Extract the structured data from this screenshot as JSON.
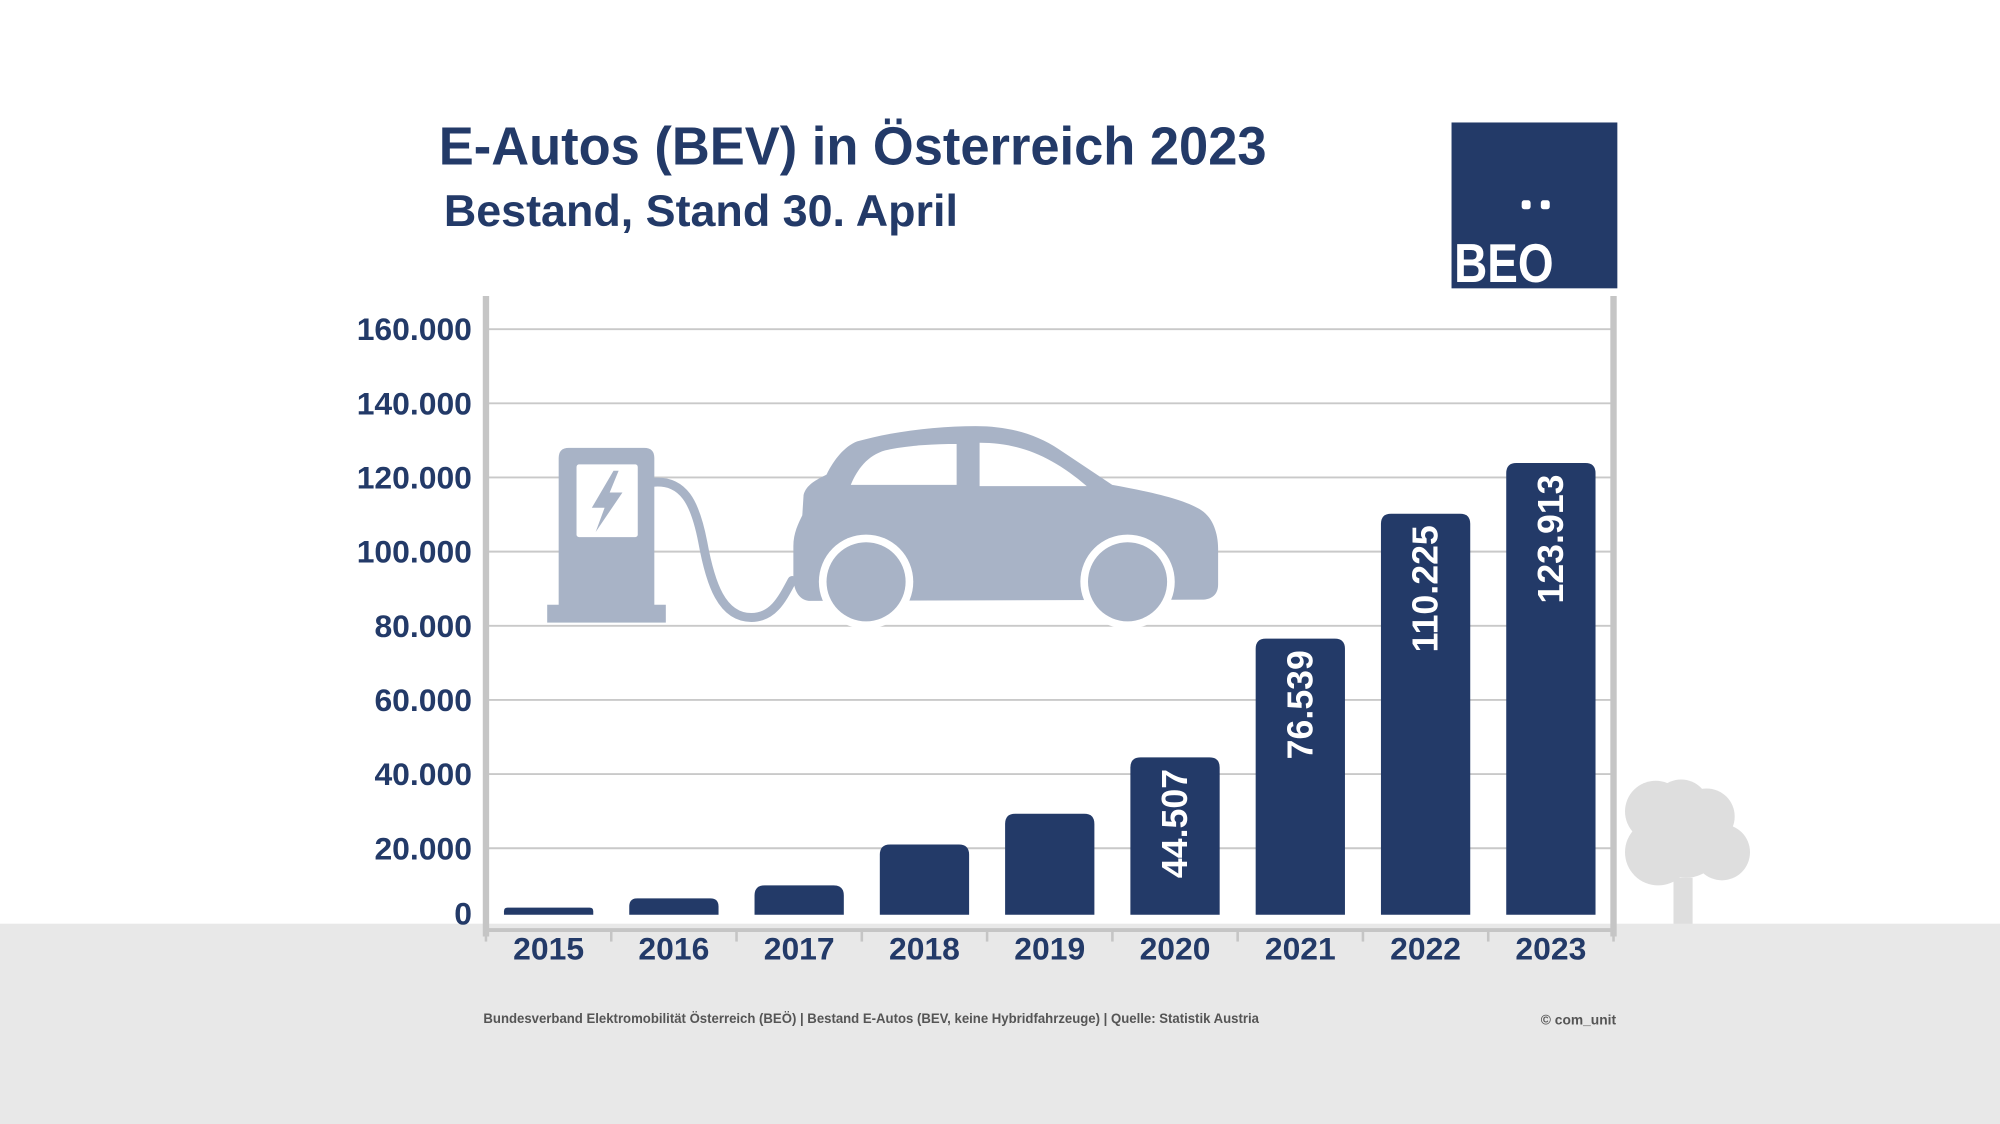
{
  "colors": {
    "navy": "#233a68",
    "axis": "#c5c5c5",
    "grid": "#c9c9c9",
    "illustration": "#a8b3c6",
    "ground": "#e8e8e8",
    "tree": "#dedede",
    "footer": "#555555"
  },
  "logo": {
    "text": "BEO",
    "icon": "logo-umlaut-dots"
  },
  "illustrations": {
    "station": "charging-station-icon",
    "car": "electric-car-icon",
    "tree": "tree-icon"
  },
  "chart_data": {
    "type": "bar",
    "title": "E-Autos (BEV) in Österreich 2023",
    "subtitle": "Bestand, Stand 30. April",
    "categories": [
      "2015",
      "2016",
      "2017",
      "2018",
      "2019",
      "2020",
      "2021",
      "2022",
      "2023"
    ],
    "values": [
      4000,
      6500,
      10000,
      21000,
      29300,
      44507,
      76539,
      110225,
      123913
    ],
    "data_labels": [
      null,
      null,
      null,
      null,
      null,
      "44.507",
      "76.539",
      "110.225",
      "123.913"
    ],
    "ylim": [
      0,
      160000
    ],
    "yticks": [
      0,
      20000,
      40000,
      60000,
      80000,
      100000,
      120000,
      140000,
      160000
    ],
    "ytick_labels": [
      "0",
      "20.000",
      "40.000",
      "60.000",
      "80.000",
      "100.000",
      "120.000",
      "140.000",
      "160.000"
    ],
    "grid": true,
    "legend": "none",
    "bar_color": "#233a68"
  },
  "footer": {
    "source": "Bundesverband Elektromobilität Österreich (BEÖ) | Bestand E-Autos (BEV, keine Hybridfahrzeuge) | Quelle: Statistik Austria",
    "copyright": "© com_unit"
  }
}
